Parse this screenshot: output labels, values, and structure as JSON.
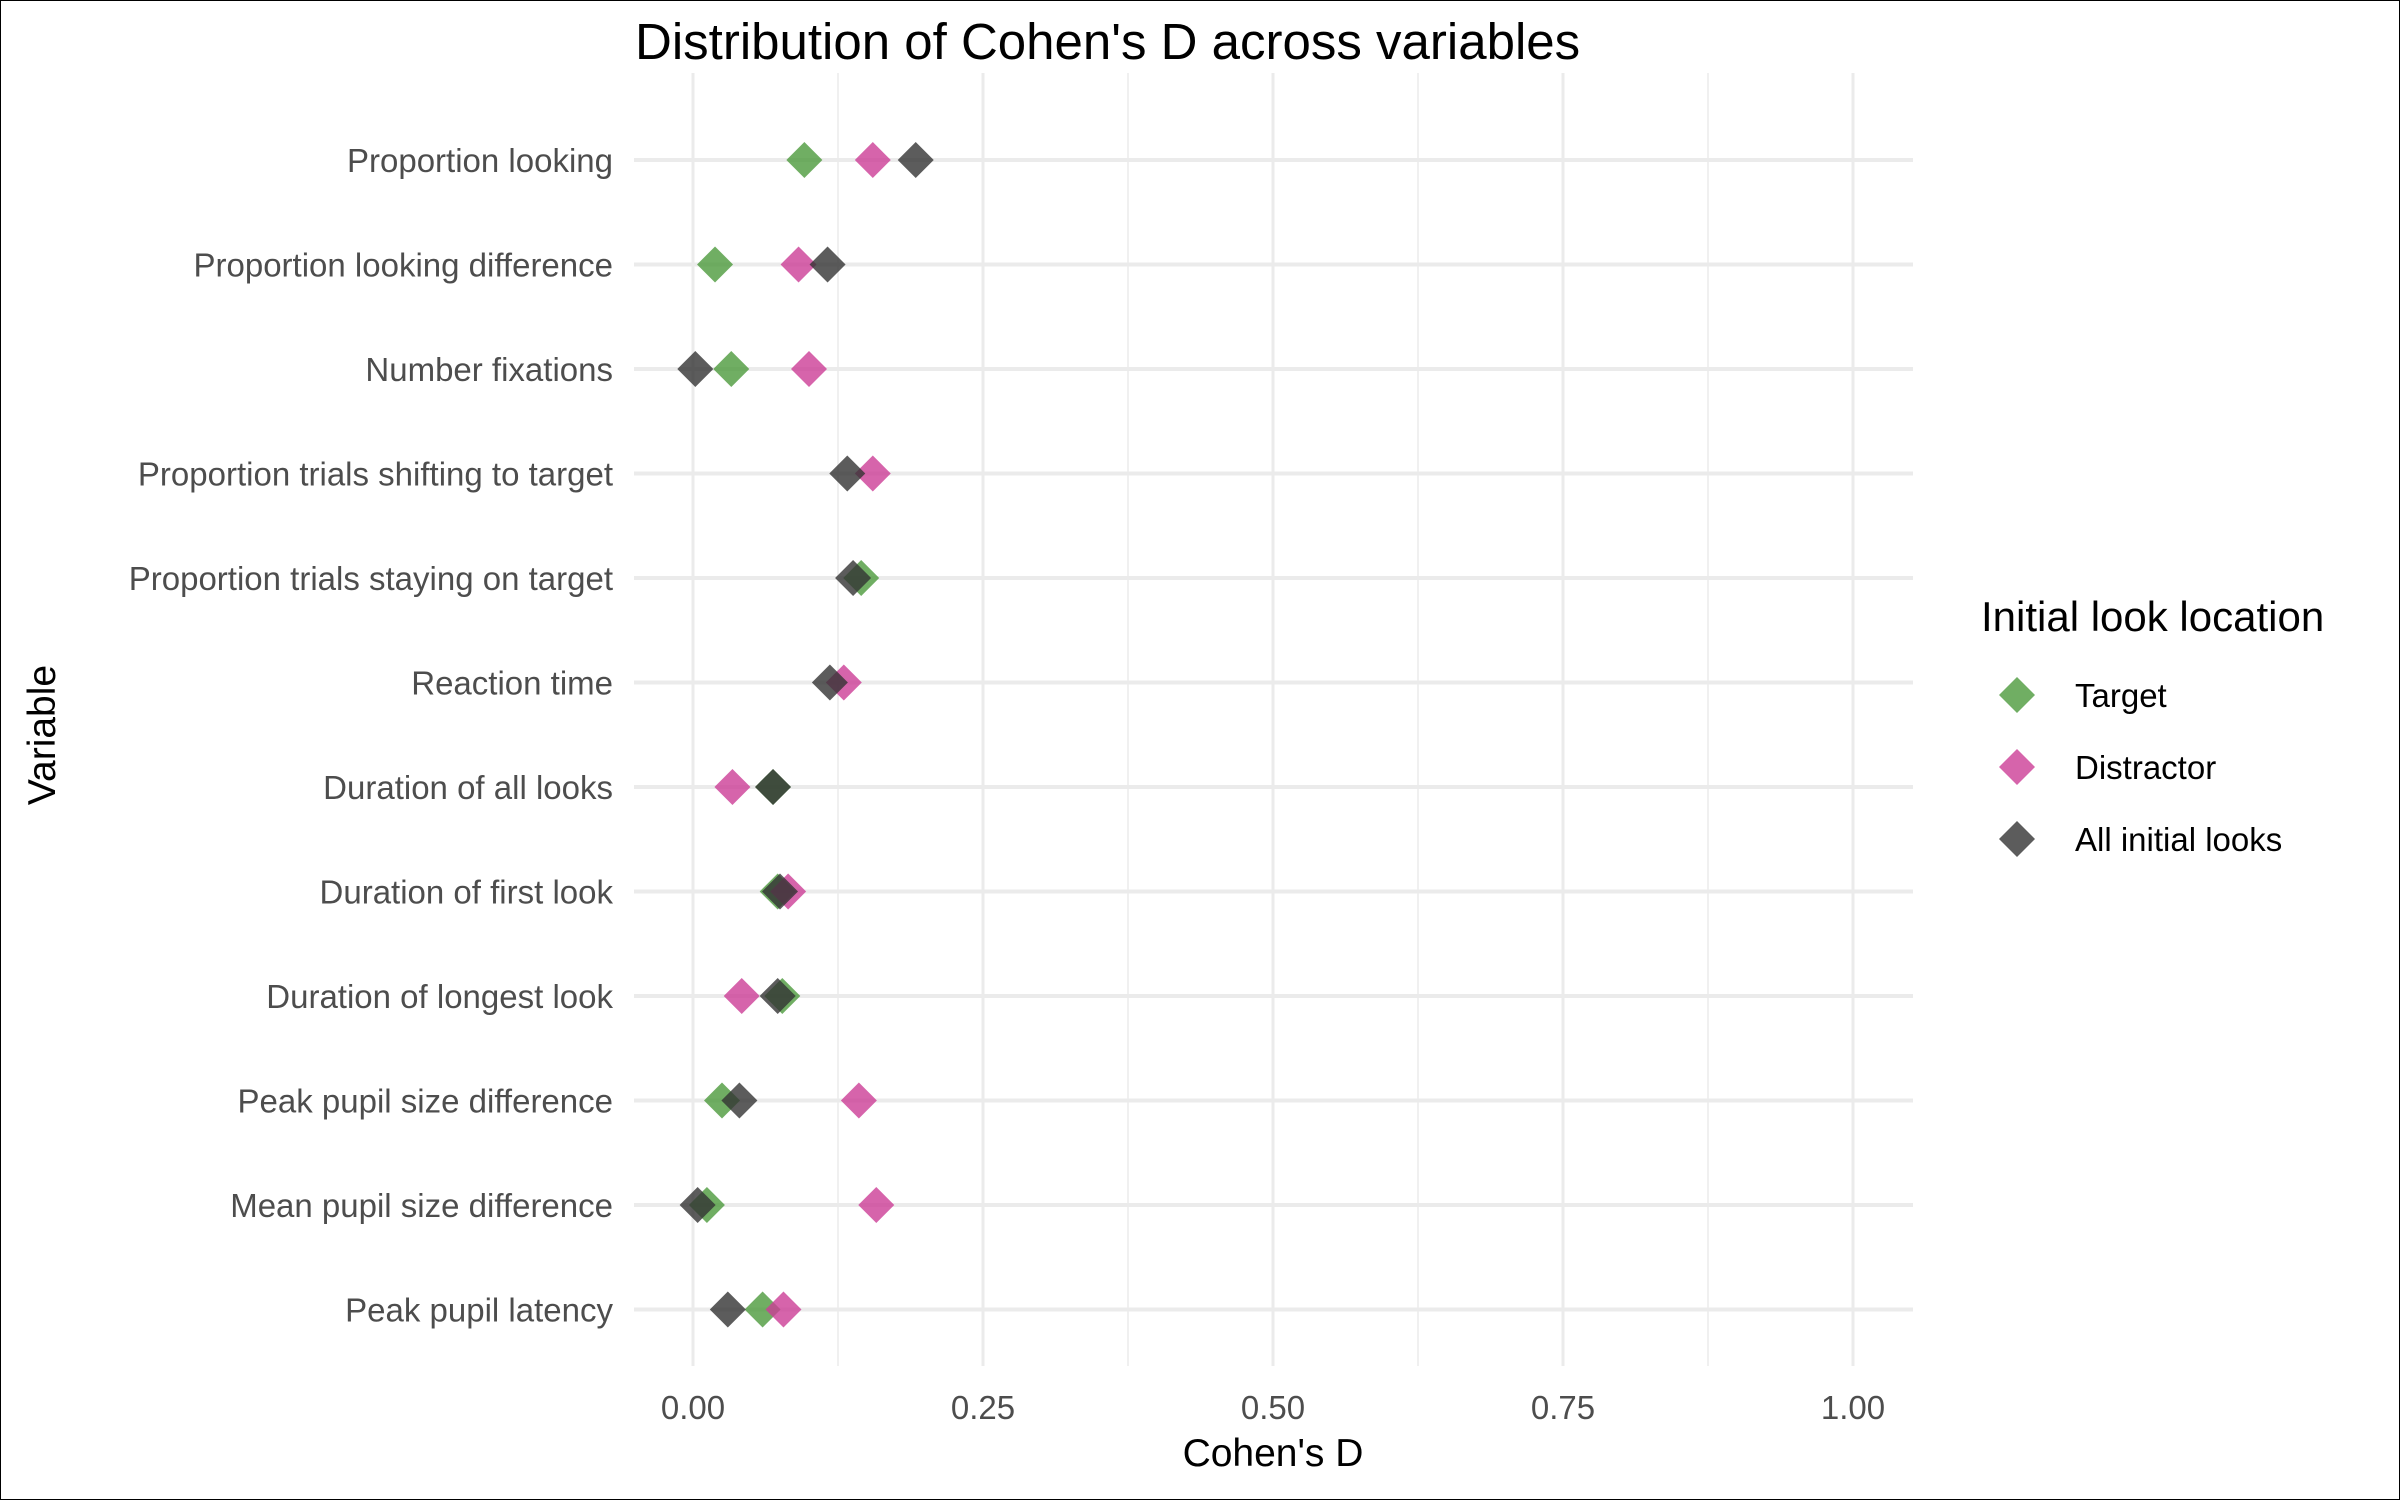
{
  "chart_data": {
    "type": "scatter",
    "title": "Distribution of Cohen's D across variables",
    "xlabel": "Cohen's D",
    "ylabel": "Variable",
    "xlim": [
      -0.05,
      1.05
    ],
    "x_ticks": [
      0.0,
      0.25,
      0.5,
      0.75,
      1.0
    ],
    "x_tick_labels": [
      "0.00",
      "0.25",
      "0.50",
      "0.75",
      "1.00"
    ],
    "grid": true,
    "legend_placement": "right",
    "legend_title": "Initial look location",
    "categories": [
      "Proportion looking",
      "Proportion looking difference",
      "Number fixations",
      "Proportion trials shifting to target",
      "Proportion trials staying on target",
      "Reaction time",
      "Duration of all looks",
      "Duration of first look",
      "Duration of longest look",
      "Peak pupil size difference",
      "Mean pupil size difference",
      "Peak pupil latency"
    ],
    "series": [
      {
        "name": "Target",
        "color": "#4c9a3c",
        "values": [
          0.096,
          0.019,
          0.033,
          null,
          0.145,
          null,
          0.069,
          0.073,
          0.077,
          0.025,
          0.012,
          0.06
        ]
      },
      {
        "name": "Distractor",
        "color": "#cc3d96",
        "values": [
          0.155,
          0.091,
          0.1,
          0.155,
          null,
          0.13,
          0.034,
          0.082,
          0.042,
          0.143,
          0.158,
          0.078
        ]
      },
      {
        "name": "All initial looks",
        "color": "#333333",
        "values": [
          0.192,
          0.116,
          0.002,
          0.133,
          0.138,
          0.118,
          0.069,
          0.075,
          0.073,
          0.04,
          0.004,
          0.03
        ]
      }
    ]
  }
}
